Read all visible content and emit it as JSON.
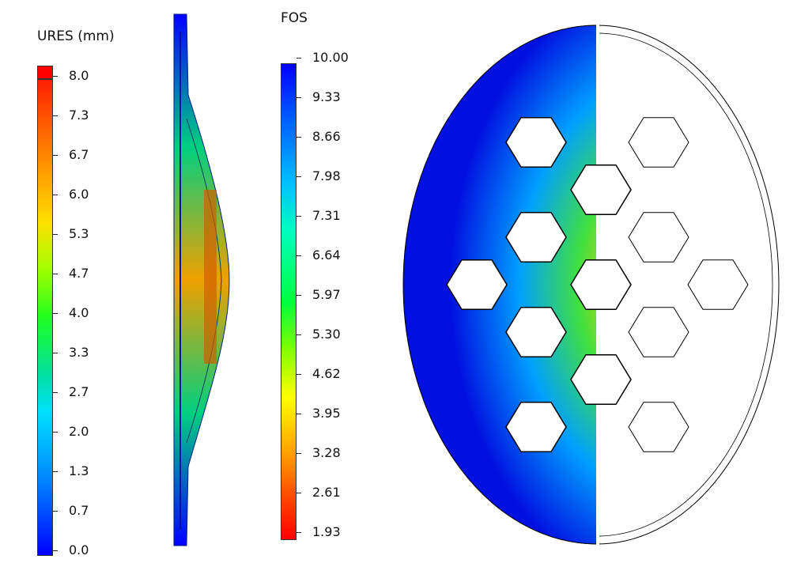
{
  "ures_legend": {
    "title": "URES (mm)",
    "ticks": [
      "8.0",
      "7.3",
      "6.7",
      "6.0",
      "5.3",
      "4.7",
      "4.0",
      "3.3",
      "2.7",
      "2.0",
      "1.3",
      "0.7",
      "0.0"
    ],
    "max_color": "#ff0000"
  },
  "fos_legend": {
    "title": "FOS",
    "ticks": [
      "10.00",
      "9.33",
      "8.66",
      "7.98",
      "7.31",
      "6.64",
      "5.97",
      "5.30",
      "4.62",
      "3.95",
      "3.28",
      "2.61",
      "1.93"
    ]
  },
  "colors": {
    "low": "#0000ff",
    "mid": "#00ff00",
    "high": "#ff0000",
    "outline": "#000000"
  }
}
